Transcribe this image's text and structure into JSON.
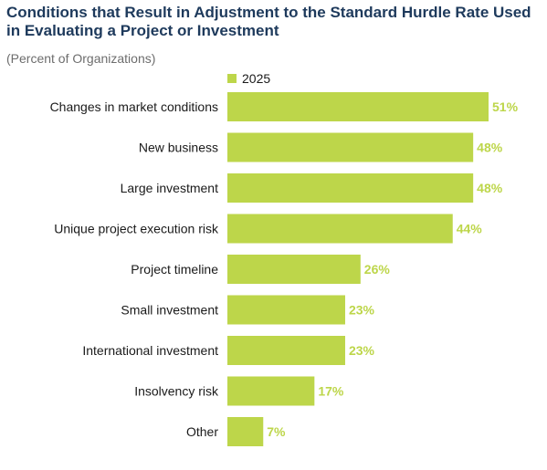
{
  "chart_data": {
    "type": "bar",
    "orientation": "horizontal",
    "title": "Conditions that Result in Adjustment to the Standard Hurdle Rate Used in Evaluating a Project or Investment",
    "subtitle": "(Percent of Organizations)",
    "xlabel": "",
    "ylabel": "",
    "legend_position": "top",
    "grid": false,
    "value_suffix": "%",
    "xlim": [
      0,
      51
    ],
    "categories": [
      "Changes in market conditions",
      "New business",
      "Large investment",
      "Unique project execution risk",
      "Project timeline",
      "Small investment",
      "International investment",
      "Insolvency risk",
      "Other"
    ],
    "series": [
      {
        "name": "2025",
        "values": [
          51,
          48,
          48,
          44,
          26,
          23,
          23,
          17,
          7
        ]
      }
    ]
  },
  "colors": {
    "bar": "#bdd64a",
    "value_label": "#bdd64a",
    "title": "#1e3a5c"
  }
}
